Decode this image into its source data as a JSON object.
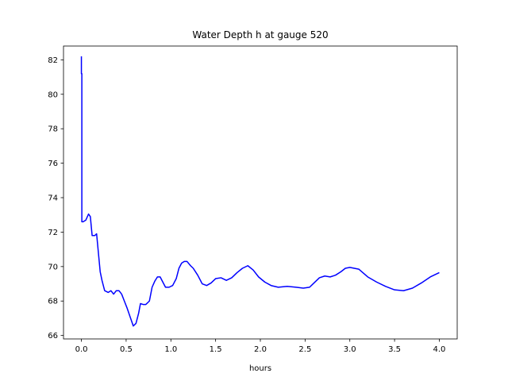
{
  "chart_data": {
    "type": "line",
    "title": "Water Depth h at gauge 520",
    "xlabel": "hours",
    "ylabel": "",
    "xlim": [
      -0.2,
      4.2
    ],
    "ylim": [
      65.8,
      82.8
    ],
    "grid": false,
    "legend": "none",
    "xticks": [
      "0.0",
      "0.5",
      "1.0",
      "1.5",
      "2.0",
      "2.5",
      "3.0",
      "3.5",
      "4.0"
    ],
    "yticks": [
      "66",
      "68",
      "70",
      "72",
      "74",
      "76",
      "78",
      "80",
      "82"
    ],
    "series": [
      {
        "color": "#0000ff",
        "x": [
          0.0,
          0.0,
          0.005,
          0.005,
          0.02,
          0.05,
          0.08,
          0.1,
          0.12,
          0.15,
          0.17,
          0.19,
          0.21,
          0.23,
          0.26,
          0.3,
          0.33,
          0.36,
          0.39,
          0.42,
          0.45,
          0.48,
          0.51,
          0.55,
          0.58,
          0.61,
          0.64,
          0.66,
          0.69,
          0.72,
          0.76,
          0.79,
          0.82,
          0.85,
          0.88,
          0.91,
          0.94,
          0.98,
          1.02,
          1.06,
          1.09,
          1.12,
          1.15,
          1.18,
          1.22,
          1.25,
          1.3,
          1.35,
          1.4,
          1.45,
          1.5,
          1.56,
          1.62,
          1.68,
          1.74,
          1.8,
          1.86,
          1.92,
          1.98,
          2.05,
          2.12,
          2.2,
          2.3,
          2.4,
          2.48,
          2.55,
          2.6,
          2.66,
          2.72,
          2.78,
          2.84,
          2.9,
          2.95,
          3.0,
          3.1,
          3.2,
          3.3,
          3.4,
          3.5,
          3.6,
          3.7,
          3.8,
          3.9,
          4.0
        ],
        "y": [
          82.2,
          81.2,
          81.2,
          72.6,
          72.6,
          72.7,
          73.05,
          72.9,
          71.8,
          71.8,
          71.9,
          70.8,
          69.7,
          69.2,
          68.6,
          68.5,
          68.6,
          68.4,
          68.6,
          68.6,
          68.4,
          68.0,
          67.6,
          67.0,
          66.55,
          66.7,
          67.3,
          67.85,
          67.8,
          67.8,
          68.0,
          68.8,
          69.15,
          69.4,
          69.4,
          69.1,
          68.8,
          68.8,
          68.9,
          69.3,
          69.9,
          70.2,
          70.3,
          70.3,
          70.05,
          69.9,
          69.5,
          69.0,
          68.9,
          69.05,
          69.3,
          69.35,
          69.2,
          69.35,
          69.65,
          69.9,
          70.05,
          69.8,
          69.4,
          69.1,
          68.9,
          68.8,
          68.85,
          68.8,
          68.75,
          68.8,
          69.05,
          69.35,
          69.45,
          69.4,
          69.5,
          69.7,
          69.9,
          69.95,
          69.85,
          69.4,
          69.1,
          68.85,
          68.65,
          68.6,
          68.75,
          69.05,
          69.4,
          69.65
        ]
      }
    ]
  }
}
